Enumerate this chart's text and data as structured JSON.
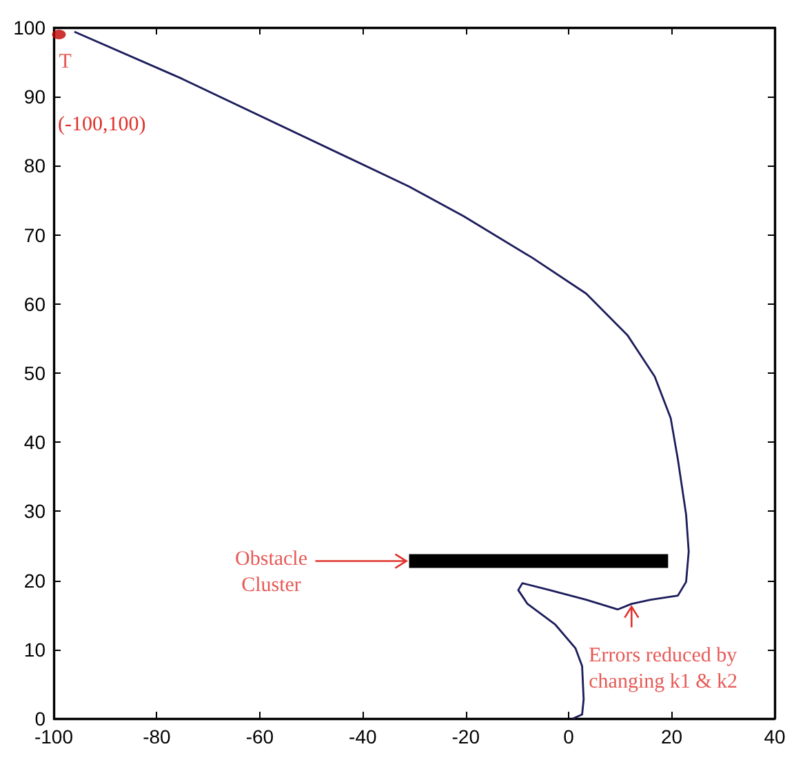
{
  "chart_data": {
    "type": "line",
    "xlim": [
      -100,
      40
    ],
    "xticks": [
      -100,
      -80,
      -60,
      -40,
      -20,
      0,
      20,
      40
    ],
    "ylim": [
      0,
      100
    ],
    "yticks": [
      0,
      10,
      20,
      30,
      40,
      50,
      60,
      70,
      80,
      90,
      100
    ],
    "grid": false,
    "marker": "none",
    "line_style": "solid",
    "series": [
      {
        "color": "#1c1c5c",
        "x": [
          -96,
          -75.1,
          -31,
          -20.4,
          -7.1,
          3.4,
          11.4,
          16.7,
          19.8,
          21.2,
          22.8,
          23.3,
          22.8,
          21.2,
          15.9,
          12.2,
          9.5,
          3.4,
          -3.7,
          -9,
          -9.8,
          -8,
          -2.6,
          1.3,
          2.6,
          2.9,
          2.6,
          0.8
        ],
        "values": [
          99.4,
          92.6,
          77,
          72.7,
          66.7,
          61.5,
          55.5,
          49.5,
          43.5,
          37.5,
          29.5,
          24.2,
          19.8,
          17.8,
          17.2,
          16.6,
          15.8,
          17.2,
          18.6,
          19.6,
          18.6,
          16.6,
          13.6,
          10.2,
          7.6,
          2.8,
          0.6,
          0
        ]
      },
      {
        "type": "line",
        "color": "#000000",
        "x": [
          -31,
          19.3
        ],
        "values": [
          22.8,
          22.8
        ]
      },
      {
        "type": "scatter",
        "marker": "circle",
        "color": "#c00000",
        "x": [
          -99
        ],
        "values": [
          99
        ]
      }
    ],
    "annotations": [
      {
        "text": "T",
        "x": -99,
        "y": 99
      },
      "(-100,100)",
      {
        "text": "Obstacle\nCluster",
        "x": -31,
        "y": 22.8
      },
      {
        "text": "Errors reduced by\nchanging k1 & k2",
        "x": 12.2,
        "y": 16.6
      }
    ]
  }
}
